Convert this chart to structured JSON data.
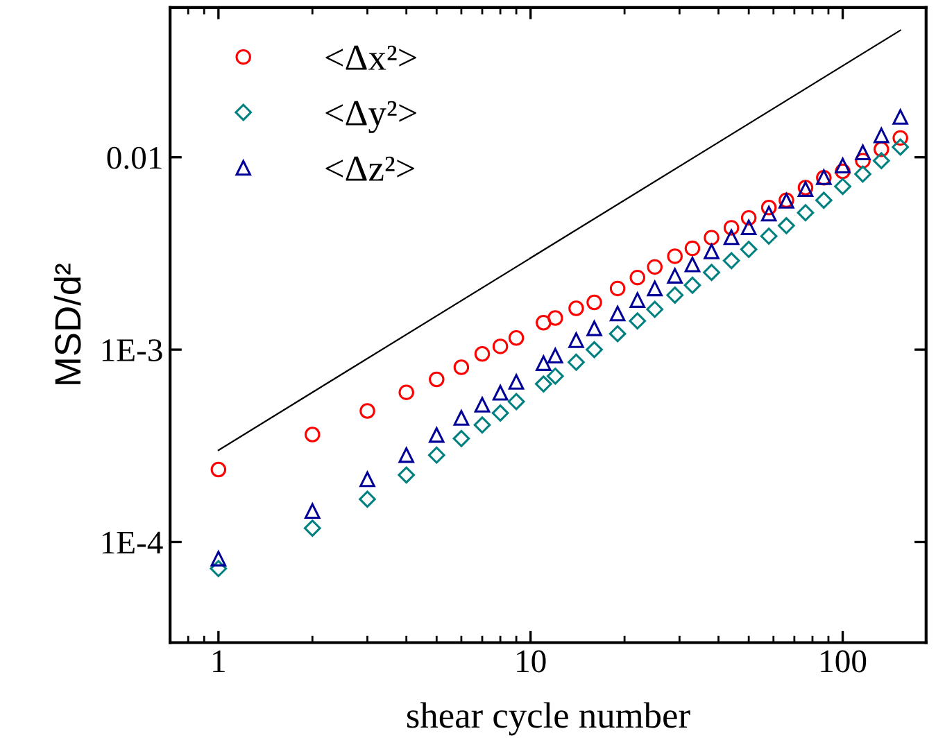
{
  "chart_data": {
    "type": "scatter",
    "xlabel": "shear cycle number",
    "ylabel": "MSD/d²",
    "log": "xy",
    "grid": false,
    "legend": "top left",
    "xlim": [
      0.7,
      185
    ],
    "ylim": [
      3e-05,
      0.06
    ],
    "xticks": [
      1,
      10,
      100
    ],
    "yticks": [
      {
        "value": 0.0001,
        "label": "1E-4"
      },
      {
        "value": 0.001,
        "label": "1E-3"
      },
      0.01
    ],
    "x": [
      1,
      2,
      3,
      4,
      5,
      6,
      7,
      8,
      9,
      11,
      12,
      14,
      16,
      19,
      22,
      25,
      29,
      33,
      38,
      44,
      50,
      58,
      66,
      76,
      87,
      100,
      116,
      133,
      153
    ],
    "series": [
      {
        "name": "<Δx²>",
        "color": "#ff0000",
        "marker": "circle",
        "values": [
          0.000238,
          0.000362,
          0.00048,
          0.0006,
          0.0007,
          0.00081,
          0.00095,
          0.00104,
          0.00115,
          0.00138,
          0.00146,
          0.00164,
          0.00176,
          0.00208,
          0.00237,
          0.00269,
          0.00306,
          0.00336,
          0.00382,
          0.0043,
          0.00484,
          0.00548,
          0.00598,
          0.00695,
          0.00783,
          0.00845,
          0.0096,
          0.011,
          0.0126
        ]
      },
      {
        "name": "<Δy²>",
        "color": "#008080",
        "marker": "diamond",
        "values": [
          7.28e-05,
          0.000118,
          0.000167,
          0.000223,
          0.000283,
          0.000345,
          0.000406,
          0.000468,
          0.000537,
          0.000663,
          0.000728,
          0.00086,
          0.001,
          0.00121,
          0.00141,
          0.00162,
          0.00192,
          0.00216,
          0.00252,
          0.0029,
          0.00332,
          0.00389,
          0.00441,
          0.00515,
          0.00598,
          0.00705,
          0.00818,
          0.0096,
          0.0113
        ]
      },
      {
        "name": "<Δz²>",
        "color": "#000099",
        "marker": "triangle",
        "values": [
          8.2e-05,
          0.000145,
          0.000212,
          0.000283,
          0.00036,
          0.000442,
          0.000517,
          0.000597,
          0.00068,
          0.00085,
          0.00093,
          0.00112,
          0.00129,
          0.00154,
          0.00181,
          0.00208,
          0.00242,
          0.00277,
          0.00324,
          0.00384,
          0.00432,
          0.00509,
          0.00594,
          0.00683,
          0.00788,
          0.00905,
          0.0106,
          0.013,
          0.0162
        ]
      },
      {
        "type": "line",
        "color": "#000000",
        "marker": "none",
        "line_style": "solid",
        "x": [
          1,
          153
        ],
        "values": [
          0.0003,
          0.0457
        ]
      }
    ]
  }
}
